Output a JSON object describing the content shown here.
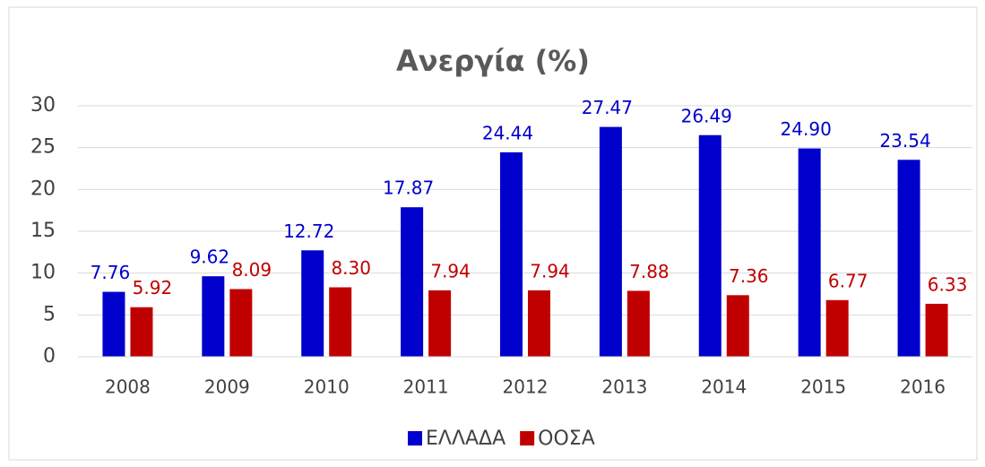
{
  "chart_data": {
    "type": "bar",
    "title": "Ανεργία (%)",
    "categories": [
      "2008",
      "2009",
      "2010",
      "2011",
      "2012",
      "2013",
      "2014",
      "2015",
      "2016"
    ],
    "series": [
      {
        "name": "ΕΛΛΑΔΑ",
        "color": "#0000cc",
        "label_color": "#0000cc",
        "values": [
          7.76,
          9.62,
          12.72,
          17.87,
          24.44,
          27.47,
          26.49,
          24.9,
          23.54
        ],
        "value_labels": [
          "7.76",
          "9.62",
          "12.72",
          "17.87",
          "24.44",
          "27.47",
          "26.49",
          "24.90",
          "23.54"
        ]
      },
      {
        "name": "ΟΟΣΑ",
        "color": "#c00000",
        "label_color": "#c00000",
        "values": [
          5.92,
          8.09,
          8.3,
          7.94,
          7.94,
          7.88,
          7.36,
          6.77,
          6.33
        ],
        "value_labels": [
          "5.92",
          "8.09",
          "8.30",
          "7.94",
          "7.94",
          "7.88",
          "7.36",
          "6.77",
          "6.33"
        ]
      }
    ],
    "ylim": [
      0,
      30
    ],
    "yticks": [
      0,
      5,
      10,
      15,
      20,
      25,
      30
    ],
    "grid": true,
    "legend": "bottom"
  }
}
